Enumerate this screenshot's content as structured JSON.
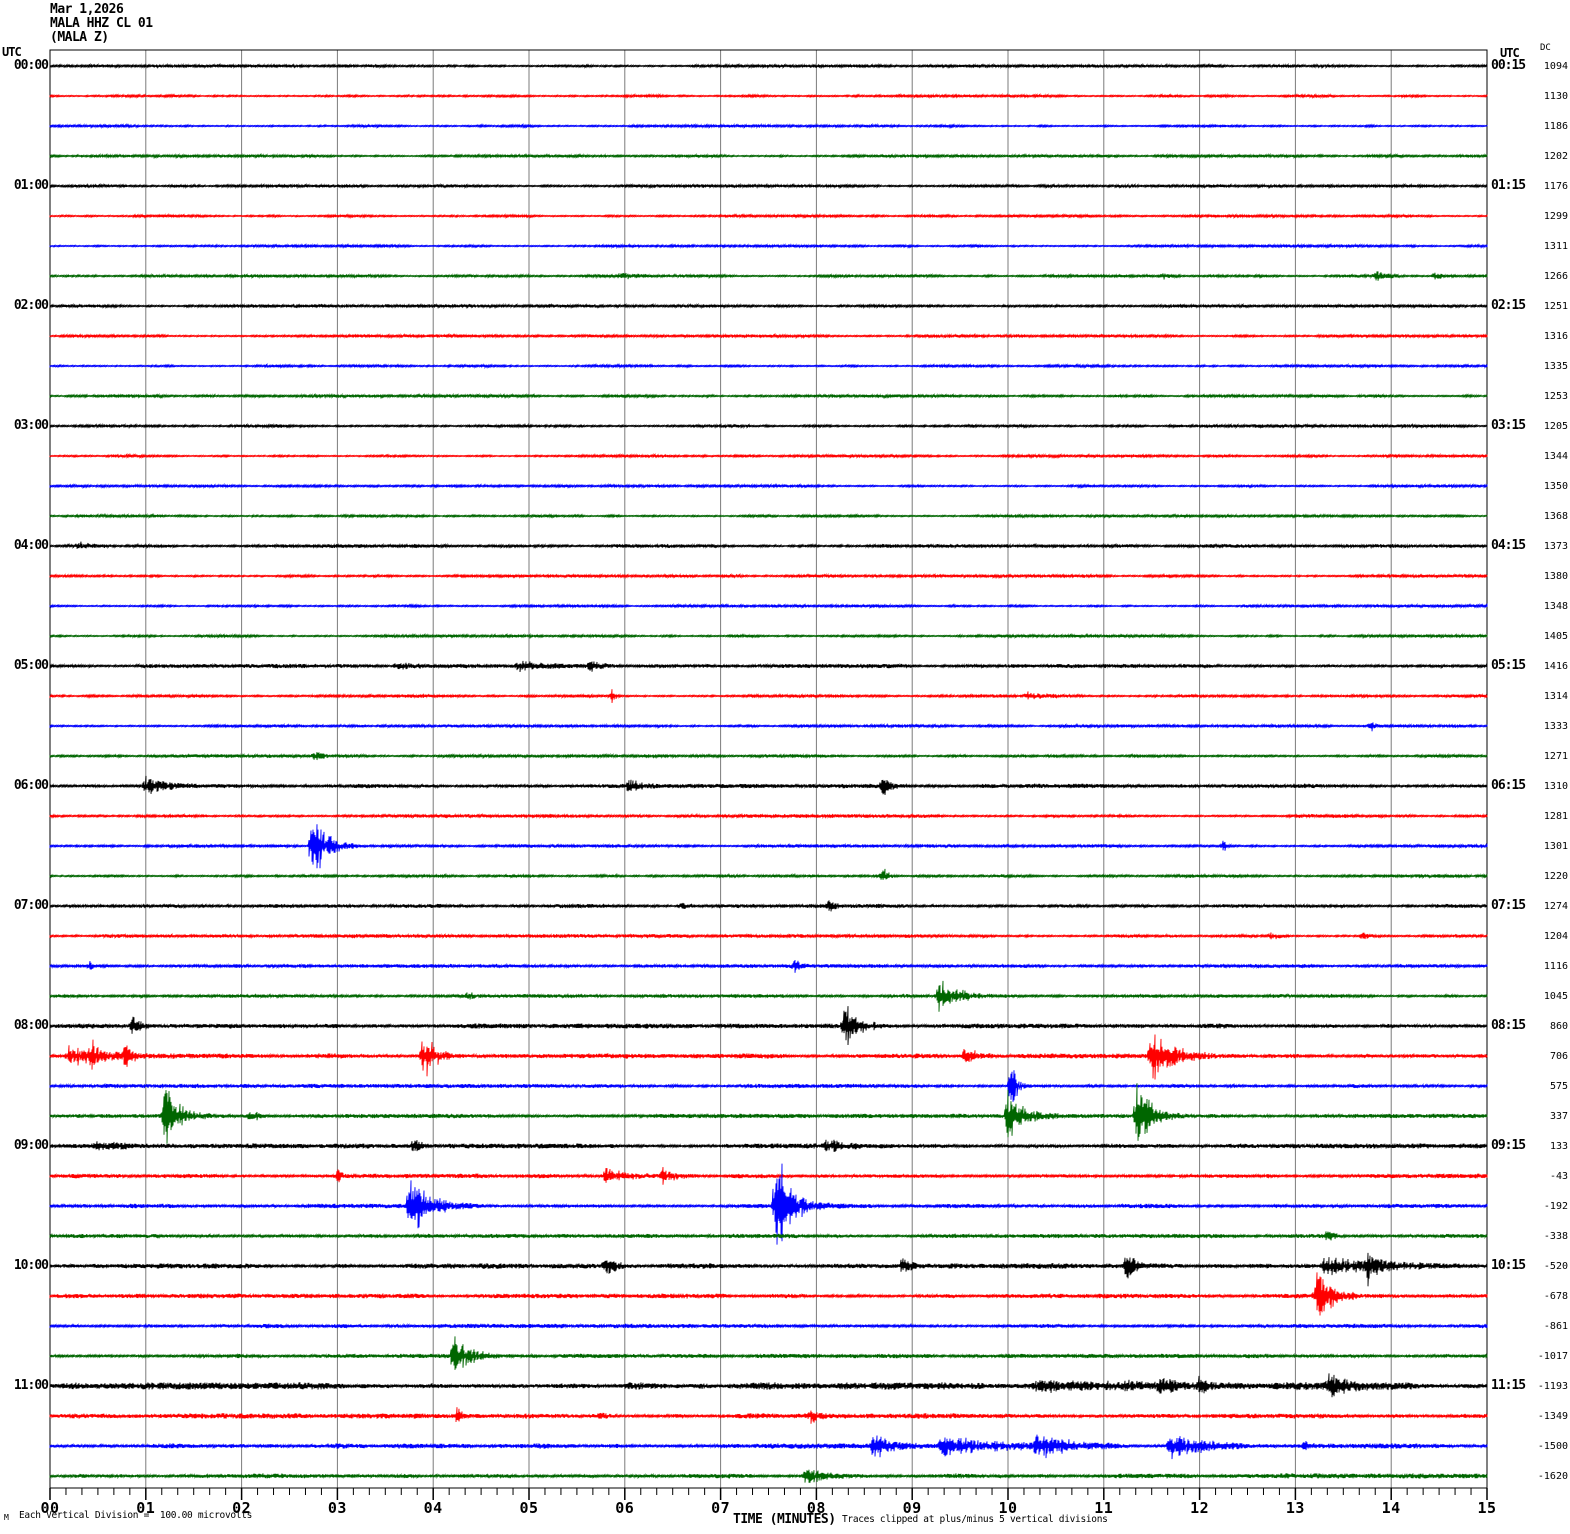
{
  "title": {
    "date": "Mar 1,2026",
    "station": "MALA HHZ CL 01",
    "component": "(MALA Z)"
  },
  "left_axis": {
    "header": "UTC",
    "labels": [
      "00:00",
      "01:00",
      "02:00",
      "03:00",
      "04:00",
      "05:00",
      "06:00",
      "07:00",
      "08:00",
      "09:00",
      "10:00",
      "11:00"
    ]
  },
  "right_axis": {
    "header": "UTC",
    "labels": [
      "00:15",
      "01:15",
      "02:15",
      "03:15",
      "04:15",
      "05:15",
      "06:15",
      "07:15",
      "08:15",
      "09:15",
      "10:15",
      "11:15"
    ]
  },
  "dc_column": {
    "header": "DC"
  },
  "x_axis": {
    "title": "TIME (MINUTES)",
    "tick_labels": [
      "00",
      "01",
      "02",
      "03",
      "04",
      "05",
      "06",
      "07",
      "08",
      "09",
      "10",
      "11",
      "12",
      "13",
      "14",
      "15"
    ]
  },
  "footer": {
    "corner_glyph": "M",
    "scale_note": "Each Vertical Division =  100.00 microvolts",
    "clip_note": "Traces clipped at plus/minus 5 vertical divisions"
  },
  "chart_data": {
    "type": "line",
    "subtype": "helicorder-seismogram",
    "title": "MALA HHZ CL 01 (MALA Z) Mar 1,2026",
    "xlabel": "TIME (MINUTES)",
    "x_range_minutes": [
      0,
      15
    ],
    "minutes_per_row": 15,
    "row_count": 48,
    "rows_per_hour": 4,
    "first_row_start_utc": "00:00",
    "last_row_end_utc": "12:00",
    "trace_color_cycle": [
      "#000000",
      "#ff0000",
      "#0000ff",
      "#006600"
    ],
    "grid_color": "#7b7b7b",
    "gridlines_every_minute": true,
    "minor_ticks_per_minute": 5,
    "clip_divisions": 5,
    "microvolts_per_division": 100.0,
    "dc_values": [
      1094,
      1130,
      1186,
      1202,
      1176,
      1299,
      1311,
      1266,
      1251,
      1316,
      1335,
      1253,
      1205,
      1344,
      1350,
      1368,
      1373,
      1380,
      1348,
      1405,
      1416,
      1314,
      1333,
      1271,
      1310,
      1281,
      1301,
      1220,
      1274,
      1204,
      1116,
      1045,
      860,
      706,
      575,
      337,
      133,
      -43,
      -192,
      -338,
      -520,
      -678,
      -861,
      -1017,
      -1193,
      -1349,
      -1500,
      -1620
    ],
    "noise_levels": [
      1.1,
      1.0,
      1.0,
      1.0,
      1.1,
      1.0,
      1.0,
      1.1,
      1.2,
      1.1,
      1.0,
      1.1,
      1.2,
      1.0,
      1.0,
      1.0,
      1.3,
      1.1,
      1.0,
      1.0,
      1.5,
      1.2,
      1.1,
      1.2,
      1.6,
      1.3,
      1.2,
      1.2,
      1.4,
      1.3,
      1.3,
      1.3,
      1.8,
      1.8,
      1.5,
      1.6,
      1.8,
      1.7,
      1.6,
      1.5,
      2.0,
      1.7,
      1.6,
      1.6,
      2.6,
      1.9,
      1.9,
      1.8
    ],
    "events_row_minute_amp_durmin": [
      [
        7,
        5.95,
        4,
        0.3
      ],
      [
        7,
        11.6,
        4,
        0.2
      ],
      [
        7,
        13.85,
        6,
        0.25
      ],
      [
        7,
        14.45,
        5,
        0.2
      ],
      [
        16,
        0.3,
        4,
        0.3
      ],
      [
        20,
        3.6,
        5,
        0.5
      ],
      [
        20,
        4.9,
        6,
        0.4
      ],
      [
        20,
        5.65,
        7,
        0.15
      ],
      [
        21,
        5.87,
        9,
        0.06
      ],
      [
        21,
        10.2,
        5,
        0.4
      ],
      [
        22,
        13.8,
        6,
        0.08
      ],
      [
        23,
        2.77,
        6,
        0.2
      ],
      [
        24,
        1.0,
        12,
        0.35
      ],
      [
        24,
        6.05,
        7,
        0.3
      ],
      [
        24,
        8.7,
        9,
        0.15
      ],
      [
        26,
        2.74,
        43,
        0.3
      ],
      [
        26,
        12.25,
        7,
        0.08
      ],
      [
        27,
        8.7,
        8,
        0.12
      ],
      [
        28,
        6.58,
        5,
        0.15
      ],
      [
        28,
        8.14,
        6,
        0.1
      ],
      [
        29,
        12.75,
        5,
        0.2
      ],
      [
        29,
        13.7,
        4,
        0.2
      ],
      [
        30,
        0.42,
        5,
        0.1
      ],
      [
        30,
        7.78,
        8,
        0.1
      ],
      [
        31,
        4.38,
        6,
        0.1
      ],
      [
        31,
        9.28,
        18,
        0.45
      ],
      [
        32,
        0.87,
        10,
        0.15
      ],
      [
        32,
        8.3,
        24,
        0.3
      ],
      [
        33,
        0.2,
        12,
        0.7
      ],
      [
        33,
        0.45,
        22,
        0.08
      ],
      [
        33,
        0.8,
        18,
        0.1
      ],
      [
        33,
        3.9,
        28,
        0.25
      ],
      [
        33,
        9.55,
        10,
        0.3
      ],
      [
        33,
        11.5,
        30,
        0.45
      ],
      [
        34,
        10.04,
        30,
        0.1
      ],
      [
        35,
        1.2,
        32,
        0.3
      ],
      [
        35,
        2.1,
        7,
        0.2
      ],
      [
        35,
        10.0,
        28,
        0.3
      ],
      [
        35,
        11.35,
        38,
        0.3
      ],
      [
        36,
        0.5,
        5,
        0.4
      ],
      [
        36,
        3.8,
        8,
        0.2
      ],
      [
        36,
        8.1,
        8,
        0.3
      ],
      [
        37,
        3.0,
        8,
        0.1
      ],
      [
        37,
        5.8,
        9,
        0.5
      ],
      [
        37,
        6.4,
        8,
        0.3
      ],
      [
        38,
        3.76,
        40,
        0.35
      ],
      [
        38,
        7.58,
        75,
        0.3
      ],
      [
        39,
        13.35,
        12,
        0.08
      ],
      [
        40,
        5.8,
        14,
        0.25
      ],
      [
        40,
        8.9,
        9,
        0.15
      ],
      [
        40,
        11.25,
        22,
        0.12
      ],
      [
        40,
        13.3,
        10,
        1.2
      ],
      [
        40,
        13.75,
        18,
        0.15
      ],
      [
        41,
        13.22,
        28,
        0.35
      ],
      [
        43,
        4.22,
        24,
        0.35
      ],
      [
        44,
        10.3,
        6,
        3.0
      ],
      [
        44,
        11.6,
        8,
        0.2
      ],
      [
        44,
        12.0,
        9,
        0.15
      ],
      [
        44,
        13.35,
        14,
        0.3
      ],
      [
        45,
        4.25,
        8,
        0.1
      ],
      [
        45,
        5.75,
        5,
        0.1
      ],
      [
        45,
        7.95,
        7,
        0.12
      ],
      [
        46,
        8.6,
        14,
        0.3
      ],
      [
        46,
        9.3,
        12,
        1.0
      ],
      [
        46,
        10.3,
        13,
        0.6
      ],
      [
        46,
        11.7,
        16,
        0.5
      ],
      [
        46,
        13.1,
        6,
        0.1
      ],
      [
        47,
        7.9,
        10,
        0.3
      ]
    ]
  }
}
